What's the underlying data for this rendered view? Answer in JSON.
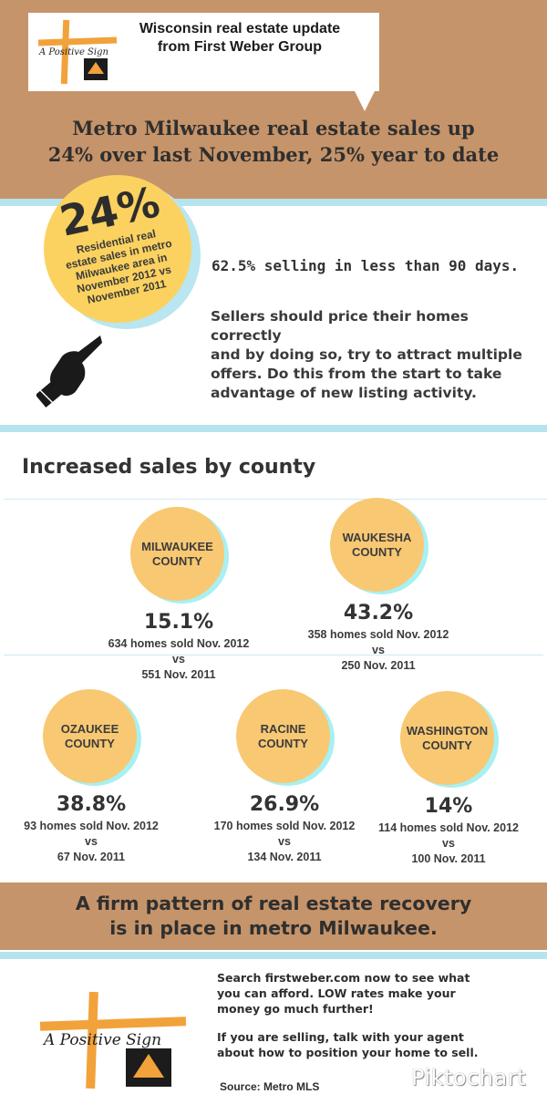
{
  "header": {
    "bubble_line1": "Wisconsin real estate update",
    "bubble_line2": "from First Weber Group",
    "headline_line1": "Metro Milwaukee real estate sales up",
    "headline_line2": "24% over last November, 25% year to date"
  },
  "logo": {
    "text": "A Positive Sign",
    "icon": "house-arrow-icon",
    "colors": {
      "cross": "#f2a23a",
      "mark": "#1c1c1c"
    }
  },
  "highlight": {
    "big_percent": "24%",
    "caption_lines": [
      "Residential real",
      "estate sales in metro",
      "Milwaukee area in",
      "November 2012 vs",
      "November 2011"
    ],
    "stat": "62.5% selling in less than 90 days.",
    "advice_lines": [
      "Sellers should price their homes correctly",
      "and by doing so, try to attract multiple",
      "offers.  Do this from the start to take",
      "advantage of new listing activity."
    ],
    "hand_icon": "pointing-hand-icon"
  },
  "counties": {
    "title": "Increased sales by county",
    "items": [
      {
        "name_line1": "MILWAUKEE",
        "name_line2": "COUNTY",
        "percent": "15.1%",
        "detail_line1": "634 homes sold Nov. 2012",
        "detail_line2": "vs",
        "detail_line3": "551 Nov. 2011"
      },
      {
        "name_line1": "WAUKESHA",
        "name_line2": "COUNTY",
        "percent": "43.2%",
        "detail_line1": "358 homes sold Nov. 2012",
        "detail_line2": "vs",
        "detail_line3": "250 Nov. 2011"
      },
      {
        "name_line1": "OZAUKEE",
        "name_line2": "COUNTY",
        "percent": "38.8%",
        "detail_line1": "93 homes sold Nov. 2012",
        "detail_line2": "vs",
        "detail_line3": "67 Nov. 2011"
      },
      {
        "name_line1": "RACINE",
        "name_line2": "COUNTY",
        "percent": "26.9%",
        "detail_line1": "170 homes sold Nov. 2012",
        "detail_line2": "vs",
        "detail_line3": "134 Nov. 2011"
      },
      {
        "name_line1": "WASHINGTON",
        "name_line2": "COUNTY",
        "percent": "14%",
        "detail_line1": "114 homes sold Nov. 2012",
        "detail_line2": "vs",
        "detail_line3": "100 Nov. 2011"
      }
    ]
  },
  "recovery": {
    "line1": "A firm pattern of real estate recovery",
    "line2": "is in place in metro Milwaukee."
  },
  "footer": {
    "search_lines": [
      "Search firstweber.com now to see what",
      "you can afford. LOW rates make your",
      "money go much further!"
    ],
    "selling_lines": [
      "If you are selling, talk with your agent",
      "about how to position your home to sell."
    ],
    "source": "Source: Metro MLS",
    "watermark": "Piktochart"
  },
  "colors": {
    "tan": "#c6946a",
    "light_blue": "#b5e4ee",
    "yellow": "#fbd25f",
    "orange_circle": "#f8c873"
  }
}
